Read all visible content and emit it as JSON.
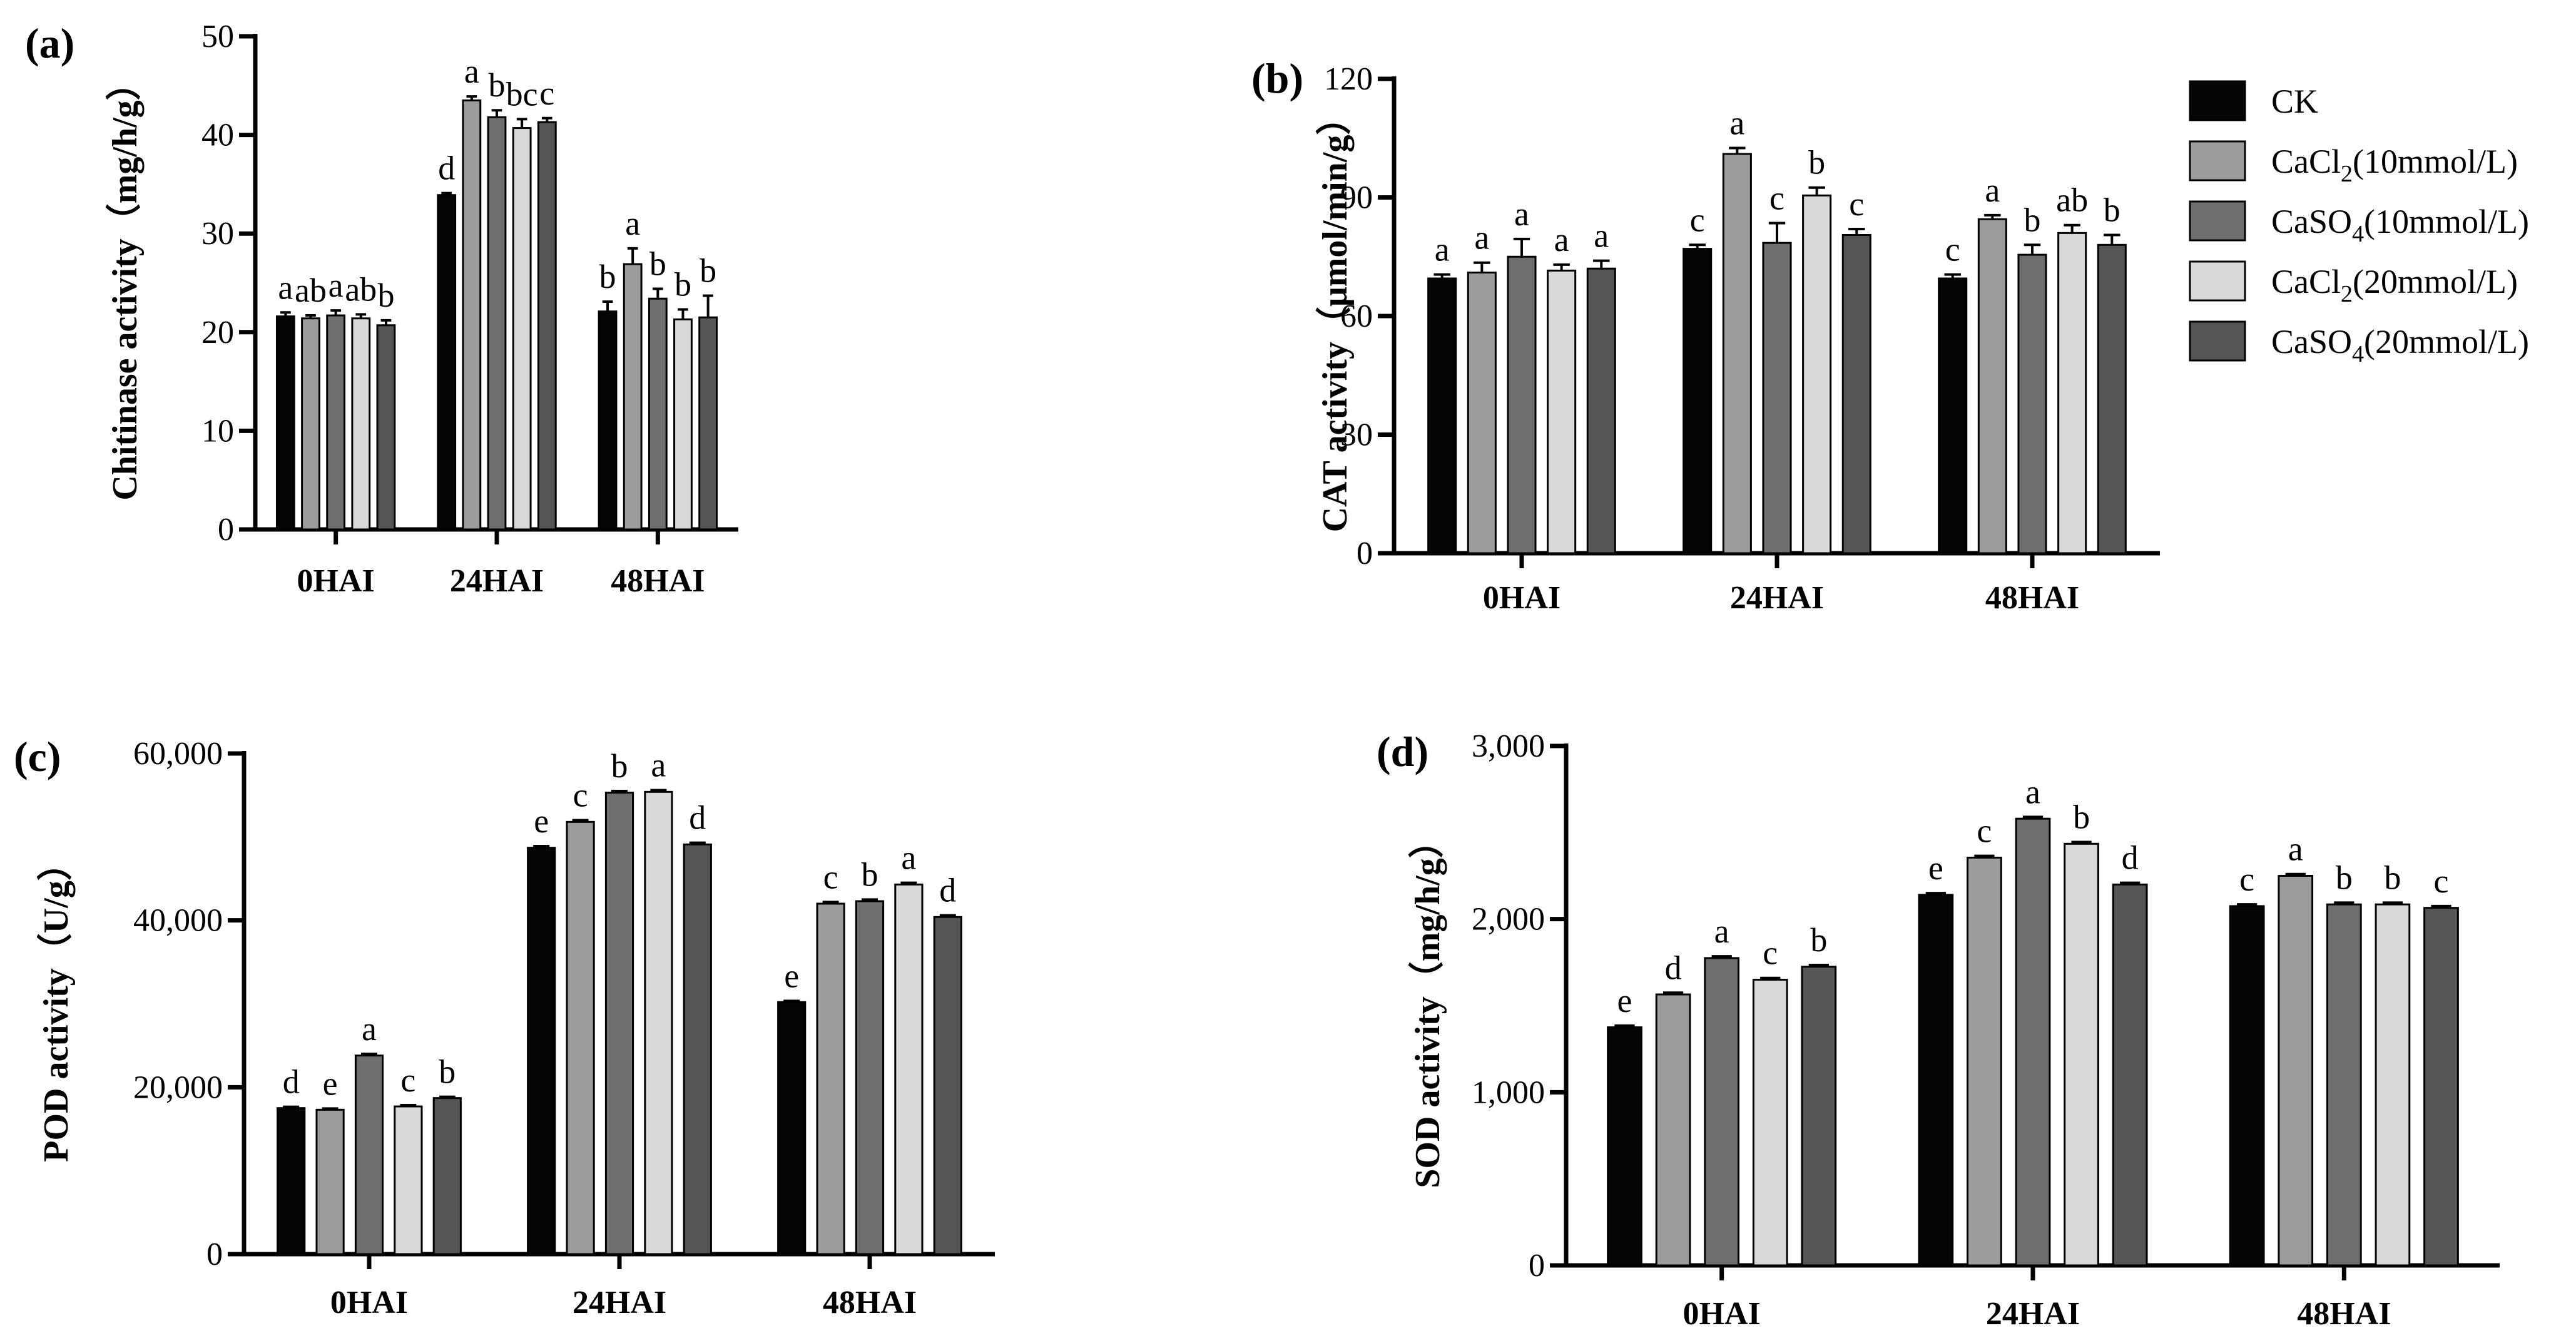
{
  "figure": {
    "series": [
      {
        "name": "CK",
        "label_main": "CK",
        "label_sub": "",
        "label_tail": "",
        "color": "#050505"
      },
      {
        "name": "CaCl2(10mmol/L)",
        "label_main": "CaCl",
        "label_sub": "2",
        "label_tail": "(10mmol/L)",
        "color": "#9c9c9c"
      },
      {
        "name": "CaSO4(10mmol/L)",
        "label_main": "CaSO",
        "label_sub": "4",
        "label_tail": "(10mmol/L)",
        "color": "#6e6e6e"
      },
      {
        "name": "CaCl2(20mmol/L)",
        "label_main": "CaCl",
        "label_sub": "2",
        "label_tail": "(20mmol/L)",
        "color": "#d9d9d9"
      },
      {
        "name": "CaSO4(20mmol/L)",
        "label_main": "CaSO",
        "label_sub": "4",
        "label_tail": "(20mmol/L)",
        "color": "#555555"
      }
    ]
  },
  "chart_data": [
    {
      "panel": "(a)",
      "type": "bar",
      "ylabel": "Chitinase activity（mg/h/g）",
      "categories": [
        "0HAI",
        "24HAI",
        "48HAI"
      ],
      "ylim": [
        0,
        50
      ],
      "yticks": [
        0,
        10,
        20,
        30,
        40,
        50
      ],
      "ytick_labels": [
        "0",
        "10",
        "20",
        "30",
        "40",
        "50"
      ],
      "series": [
        {
          "name": "CK",
          "values": [
            21.6,
            33.9,
            22.1
          ],
          "errors": [
            0.4,
            0.2,
            1.0
          ],
          "letters": [
            "a",
            "d",
            "b"
          ]
        },
        {
          "name": "CaCl2(10mmol/L)",
          "values": [
            21.4,
            43.5,
            26.9
          ],
          "errors": [
            0.3,
            0.4,
            1.6
          ],
          "letters": [
            "ab",
            "a",
            "a"
          ]
        },
        {
          "name": "CaSO4(10mmol/L)",
          "values": [
            21.7,
            41.8,
            23.4
          ],
          "errors": [
            0.5,
            0.7,
            1.0
          ],
          "letters": [
            "a",
            "b",
            "b"
          ]
        },
        {
          "name": "CaCl2(20mmol/L)",
          "values": [
            21.4,
            40.7,
            21.3
          ],
          "errors": [
            0.4,
            0.9,
            1.0
          ],
          "letters": [
            "ab",
            "bc",
            "b"
          ]
        },
        {
          "name": "CaSO4(20mmol/L)",
          "values": [
            20.7,
            41.3,
            21.5
          ],
          "errors": [
            0.5,
            0.4,
            2.2
          ],
          "letters": [
            "b",
            "c",
            "b"
          ]
        }
      ]
    },
    {
      "panel": "(b)",
      "type": "bar",
      "ylabel": "CAT activity（μmol/min/g）",
      "categories": [
        "0HAI",
        "24HAI",
        "48HAI"
      ],
      "ylim": [
        0,
        120
      ],
      "yticks": [
        0,
        30,
        60,
        90,
        120
      ],
      "ytick_labels": [
        "0",
        "30",
        "60",
        "90",
        "120"
      ],
      "series": [
        {
          "name": "CK",
          "values": [
            69.5,
            77.0,
            69.5
          ],
          "errors": [
            1.0,
            1.0,
            1.0
          ],
          "letters": [
            "a",
            "c",
            "c"
          ]
        },
        {
          "name": "CaCl2(10mmol/L)",
          "values": [
            71.0,
            101.0,
            84.5
          ],
          "errors": [
            2.5,
            1.5,
            1.0
          ],
          "letters": [
            "a",
            "a",
            "a"
          ]
        },
        {
          "name": "CaSO4(10mmol/L)",
          "values": [
            75.0,
            78.5,
            75.5
          ],
          "errors": [
            4.5,
            5.0,
            2.5
          ],
          "letters": [
            "a",
            "c",
            "b"
          ]
        },
        {
          "name": "CaCl2(20mmol/L)",
          "values": [
            71.5,
            90.5,
            81.0
          ],
          "errors": [
            1.5,
            2.0,
            2.0
          ],
          "letters": [
            "a",
            "b",
            "ab"
          ]
        },
        {
          "name": "CaSO4(20mmol/L)",
          "values": [
            72.0,
            80.5,
            78.0
          ],
          "errors": [
            2.0,
            1.5,
            2.5
          ],
          "letters": [
            "a",
            "c",
            "b"
          ]
        }
      ]
    },
    {
      "panel": "(c)",
      "type": "bar",
      "ylabel": "POD activity（U/g）",
      "categories": [
        "0HAI",
        "24HAI",
        "48HAI"
      ],
      "ylim": [
        0,
        60000
      ],
      "yticks": [
        0,
        20000,
        40000,
        60000
      ],
      "ytick_labels": [
        "0",
        "20,000",
        "40,000",
        "60,000"
      ],
      "series": [
        {
          "name": "CK",
          "values": [
            17500,
            48700,
            30200
          ],
          "errors": [
            150,
            200,
            150
          ],
          "letters": [
            "d",
            "e",
            "e"
          ]
        },
        {
          "name": "CaCl2(10mmol/L)",
          "values": [
            17300,
            51800,
            42000
          ],
          "errors": [
            150,
            200,
            200
          ],
          "letters": [
            "e",
            "c",
            "c"
          ]
        },
        {
          "name": "CaSO4(10mmol/L)",
          "values": [
            23800,
            55300,
            42300
          ],
          "errors": [
            200,
            200,
            200
          ],
          "letters": [
            "a",
            "b",
            "b"
          ]
        },
        {
          "name": "CaCl2(20mmol/L)",
          "values": [
            17700,
            55400,
            44300
          ],
          "errors": [
            150,
            200,
            200
          ],
          "letters": [
            "c",
            "a",
            "a"
          ]
        },
        {
          "name": "CaSO4(20mmol/L)",
          "values": [
            18700,
            49100,
            40400
          ],
          "errors": [
            150,
            200,
            200
          ],
          "letters": [
            "b",
            "d",
            "d"
          ]
        }
      ]
    },
    {
      "panel": "(d)",
      "type": "bar",
      "ylabel": "SOD activity（mg/h/g）",
      "categories": [
        "0HAI",
        "24HAI",
        "48HAI"
      ],
      "ylim": [
        0,
        3000
      ],
      "yticks": [
        0,
        1000,
        2000,
        3000
      ],
      "ytick_labels": [
        "0",
        "1,000",
        "2,000",
        "3,000"
      ],
      "series": [
        {
          "name": "CK",
          "values": [
            1375,
            2140,
            2075
          ],
          "errors": [
            10,
            10,
            10
          ],
          "letters": [
            "e",
            "e",
            "c"
          ]
        },
        {
          "name": "CaCl2(10mmol/L)",
          "values": [
            1565,
            2355,
            2250
          ],
          "errors": [
            10,
            10,
            10
          ],
          "letters": [
            "d",
            "c",
            "a"
          ]
        },
        {
          "name": "CaSO4(10mmol/L)",
          "values": [
            1775,
            2580,
            2085
          ],
          "errors": [
            10,
            10,
            10
          ],
          "letters": [
            "a",
            "a",
            "b"
          ]
        },
        {
          "name": "CaCl2(20mmol/L)",
          "values": [
            1650,
            2435,
            2085
          ],
          "errors": [
            10,
            10,
            10
          ],
          "letters": [
            "c",
            "b",
            "b"
          ]
        },
        {
          "name": "CaSO4(20mmol/L)",
          "values": [
            1725,
            2200,
            2065
          ],
          "errors": [
            10,
            10,
            10
          ],
          "letters": [
            "b",
            "d",
            "c"
          ]
        }
      ]
    }
  ]
}
